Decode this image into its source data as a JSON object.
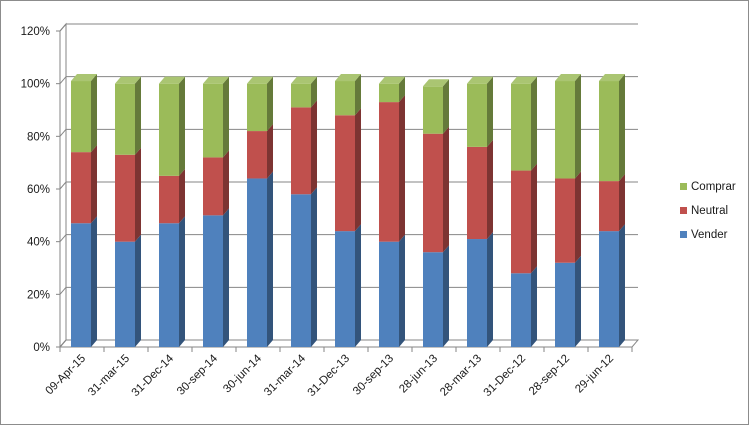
{
  "chart_data": {
    "type": "bar",
    "stacked": true,
    "three_d": true,
    "categories": [
      "09-Apr-15",
      "31-mar-15",
      "31-Dec-14",
      "30-sep-14",
      "30-jun-14",
      "31-mar-14",
      "31-Dec-13",
      "30-sep-13",
      "28-jun-13",
      "28-mar-13",
      "31-Dec-12",
      "28-sep-12",
      "29-jun-12"
    ],
    "series": [
      {
        "name": "Vender",
        "color": "#4f81bd",
        "values": [
          47,
          40,
          47,
          50,
          64,
          58,
          44,
          40,
          36,
          41,
          28,
          32,
          44
        ]
      },
      {
        "name": "Neutral",
        "color": "#c0504d",
        "values": [
          27,
          33,
          18,
          22,
          18,
          33,
          44,
          53,
          45,
          35,
          39,
          32,
          19
        ]
      },
      {
        "name": "Comprar",
        "color": "#9bbb59",
        "values": [
          27,
          27,
          35,
          28,
          18,
          9,
          13,
          7,
          18,
          24,
          33,
          37,
          38
        ]
      }
    ],
    "ylim": [
      0,
      120
    ],
    "y_ticks": [
      "0%",
      "20%",
      "40%",
      "60%",
      "80%",
      "100%",
      "120%"
    ],
    "y_tick_values": [
      0,
      20,
      40,
      60,
      80,
      100,
      120
    ],
    "grid": true,
    "legend_position": "right",
    "title": "",
    "xlabel": "",
    "ylabel": ""
  }
}
